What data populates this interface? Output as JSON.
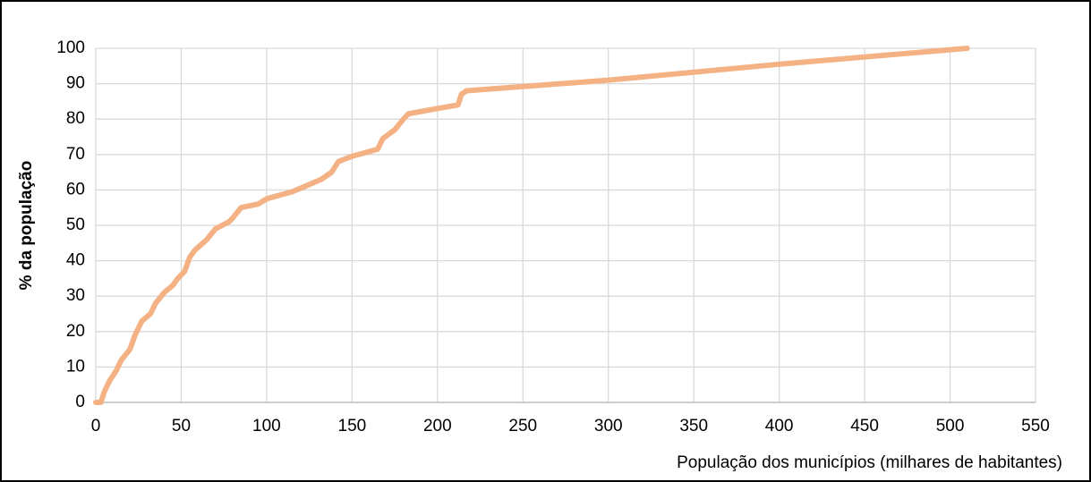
{
  "chart_data": {
    "type": "line",
    "x_label": "População dos municípios (milhares de habitantes)",
    "y_label": "% da população",
    "x": [
      0,
      3,
      5,
      8,
      12,
      15,
      20,
      23,
      27,
      32,
      35,
      40,
      45,
      48,
      52,
      55,
      58,
      65,
      70,
      78,
      80,
      85,
      95,
      100,
      115,
      120,
      132,
      138,
      142,
      150,
      165,
      168,
      175,
      180,
      183,
      200,
      212,
      214,
      217,
      300,
      400,
      510
    ],
    "series": [
      {
        "name": "% da população",
        "color": "#f4b183",
        "values": [
          0,
          0,
          3,
          6,
          9,
          12,
          15,
          19,
          23,
          25,
          28,
          31,
          33,
          35,
          37,
          41,
          43,
          46,
          49,
          51,
          52,
          55,
          56,
          57.5,
          59.5,
          60.5,
          63,
          65,
          68,
          69.5,
          71.5,
          74.5,
          77,
          80,
          81.5,
          83,
          84,
          87,
          88,
          91,
          95.5,
          100
        ]
      }
    ],
    "xlim": [
      0,
      550
    ],
    "xticks": [
      0,
      50,
      100,
      150,
      200,
      250,
      300,
      350,
      400,
      450,
      500,
      550
    ],
    "ylim": [
      0,
      100
    ],
    "yticks": [
      0,
      10,
      20,
      30,
      40,
      50,
      60,
      70,
      80,
      90,
      100
    ],
    "grid": true
  }
}
